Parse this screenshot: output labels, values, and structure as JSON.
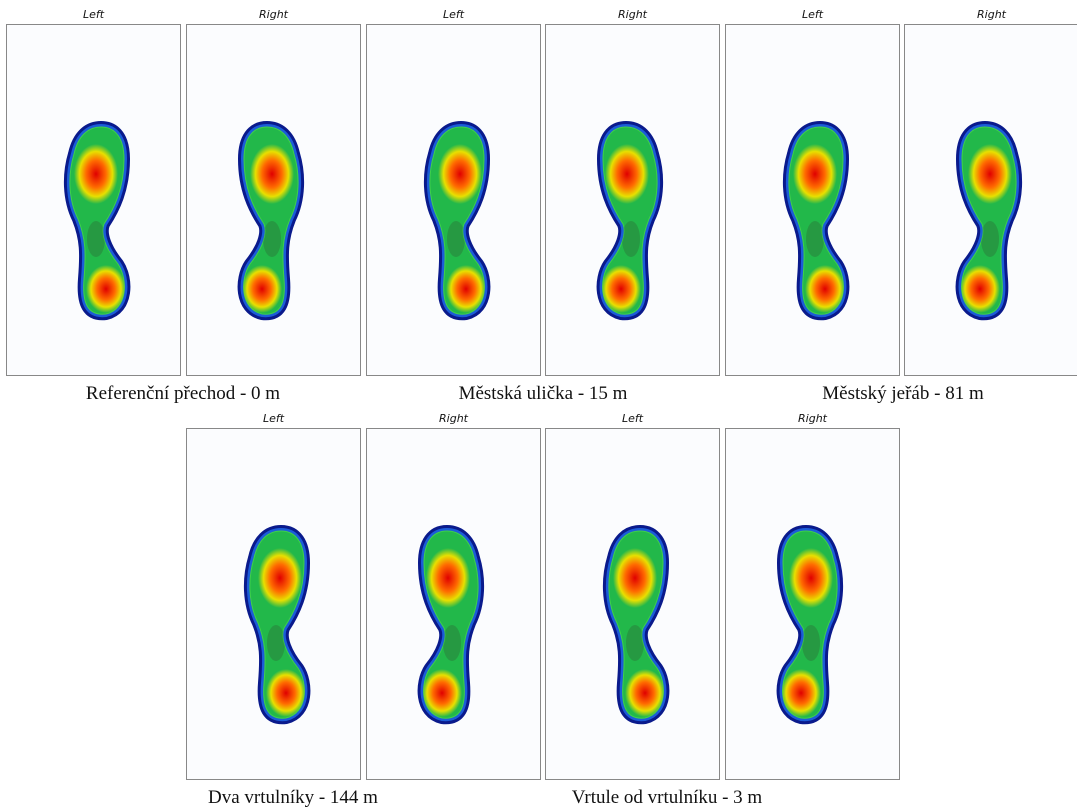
{
  "panels": [
    {
      "caption": "Referenční přechod - 0 m",
      "views": [
        "Left",
        "Right"
      ]
    },
    {
      "caption": "Městská ulička - 15 m",
      "views": [
        "Left",
        "Right"
      ]
    },
    {
      "caption": "Městský jeřáb - 81 m",
      "views": [
        "Left",
        "Right"
      ]
    },
    {
      "caption": "Dva vrtulníky - 144 m",
      "views": [
        "Left",
        "Right"
      ]
    },
    {
      "caption": "Vrtule od vrtulníku - 3 m",
      "views": [
        "Left",
        "Right"
      ]
    }
  ]
}
